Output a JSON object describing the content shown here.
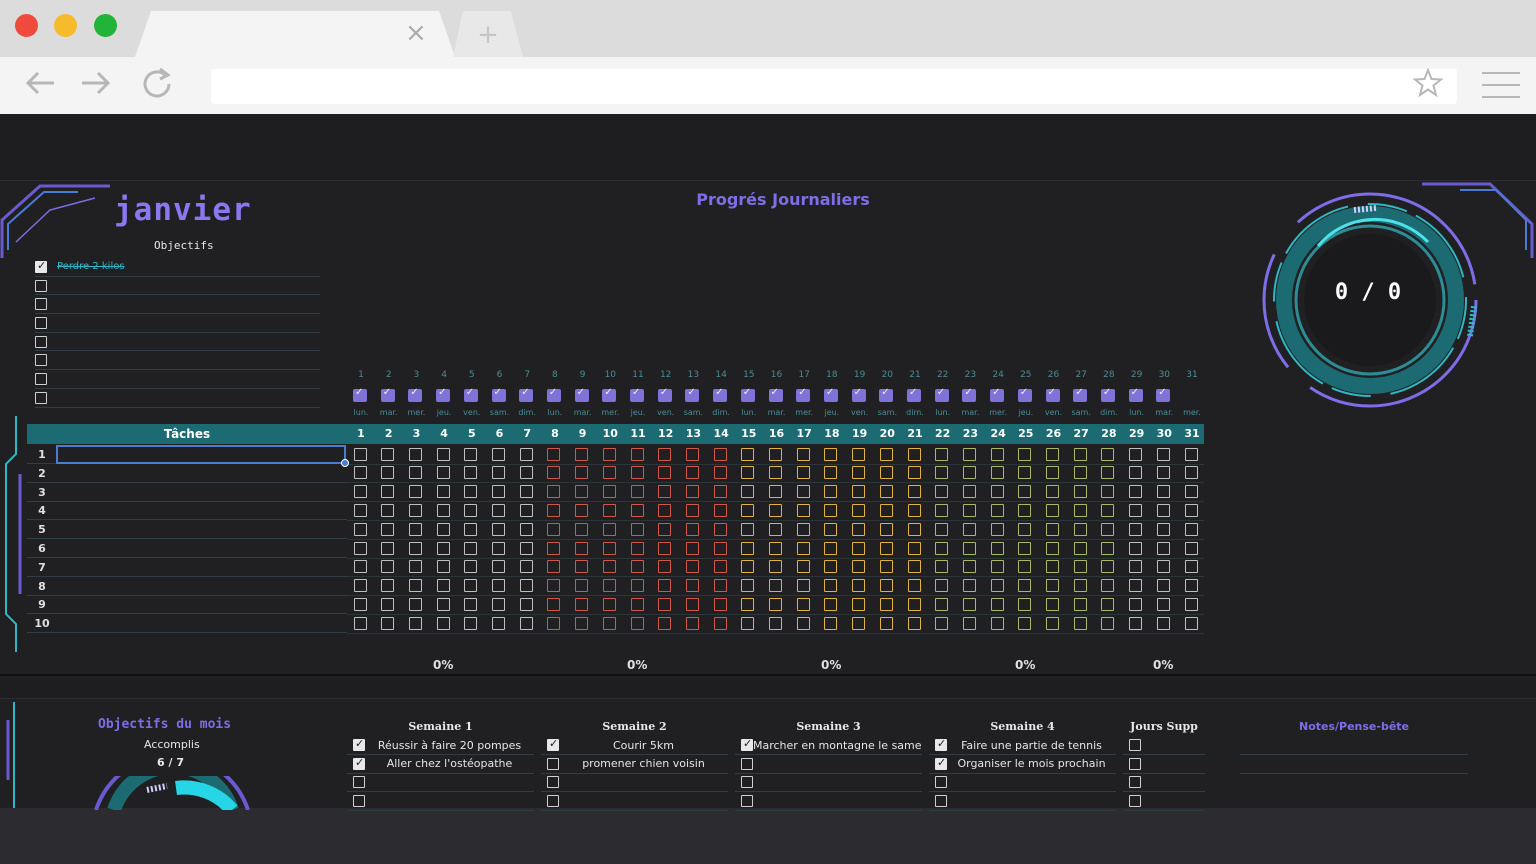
{
  "browser": {
    "tab_close": "×",
    "tab_new": "+",
    "back_icon": "arrow-left-icon",
    "forward_icon": "arrow-right-icon",
    "reload_icon": "reload-icon",
    "star_icon": "star-icon",
    "menu_icon": "hamburger-menu-icon"
  },
  "header": {
    "month": "janvier",
    "objectives_label": "Objectifs",
    "daily_title": "Progrés Journaliers"
  },
  "objectives": [
    {
      "text": "Perdre 2 kilos",
      "checked": true
    },
    {
      "text": "",
      "checked": false
    },
    {
      "text": "",
      "checked": false
    },
    {
      "text": "",
      "checked": false
    },
    {
      "text": "",
      "checked": false
    },
    {
      "text": "",
      "checked": false
    },
    {
      "text": "",
      "checked": false
    },
    {
      "text": "",
      "checked": false
    }
  ],
  "days": {
    "numbers": [
      "1",
      "2",
      "3",
      "4",
      "5",
      "6",
      "7",
      "8",
      "9",
      "10",
      "11",
      "12",
      "13",
      "14",
      "15",
      "16",
      "17",
      "18",
      "19",
      "20",
      "21",
      "22",
      "23",
      "24",
      "25",
      "26",
      "27",
      "28",
      "29",
      "30",
      "31"
    ],
    "names": [
      "lun.",
      "mar.",
      "mer.",
      "jeu.",
      "ven.",
      "sam.",
      "dim.",
      "lun.",
      "mar.",
      "mer.",
      "jeu.",
      "ven.",
      "sam.",
      "dim.",
      "lun.",
      "mar.",
      "mer.",
      "jeu.",
      "ven.",
      "sam.",
      "dim.",
      "lun.",
      "mar.",
      "mer.",
      "jeu.",
      "ven.",
      "sam.",
      "dim.",
      "lun.",
      "mar.",
      "mer."
    ]
  },
  "tasks": {
    "header_label": "Tâches",
    "row_numbers": [
      "1",
      "2",
      "3",
      "4",
      "5",
      "6",
      "7",
      "8",
      "9",
      "10"
    ]
  },
  "week_colors": [
    "#bfbfbf",
    "#d0574a",
    "#e0b340",
    "#a9b96a",
    "#bfbfbf"
  ],
  "weekly_percentages": [
    "0%",
    "0%",
    "0%",
    "0%",
    "0%"
  ],
  "progress_ring": {
    "text": "0 / 0"
  },
  "month_goals": {
    "title": "Objectifs du mois",
    "accomplis_label": "Accomplis",
    "accomplis_value": "6 / 7"
  },
  "weeks": [
    {
      "title": "Semaine 1",
      "items": [
        {
          "text": "Réussir à faire 20 pompes",
          "checked": true
        },
        {
          "text": "Aller chez l'ostéopathe",
          "checked": true
        },
        {
          "text": "",
          "checked": false
        },
        {
          "text": "",
          "checked": false
        }
      ]
    },
    {
      "title": "Semaine 2",
      "items": [
        {
          "text": "Courir 5km",
          "checked": true
        },
        {
          "text": "promener chien voisin",
          "checked": false
        },
        {
          "text": "",
          "checked": false
        },
        {
          "text": "",
          "checked": false
        }
      ]
    },
    {
      "title": "Semaine 3",
      "items": [
        {
          "text": "Marcher en montagne le samedi",
          "checked": true
        },
        {
          "text": "",
          "checked": false
        },
        {
          "text": "",
          "checked": false
        },
        {
          "text": "",
          "checked": false
        }
      ]
    },
    {
      "title": "Semaine 4",
      "items": [
        {
          "text": "Faire une partie de tennis",
          "checked": true
        },
        {
          "text": "Organiser le mois prochain",
          "checked": true
        },
        {
          "text": "",
          "checked": false
        },
        {
          "text": "",
          "checked": false
        }
      ]
    },
    {
      "title": "Jours Supp",
      "items": [
        {
          "text": "",
          "checked": false
        },
        {
          "text": "",
          "checked": false
        },
        {
          "text": "",
          "checked": false
        },
        {
          "text": "",
          "checked": false
        }
      ]
    }
  ],
  "notes": {
    "title": "Notes/Pense-bête"
  }
}
